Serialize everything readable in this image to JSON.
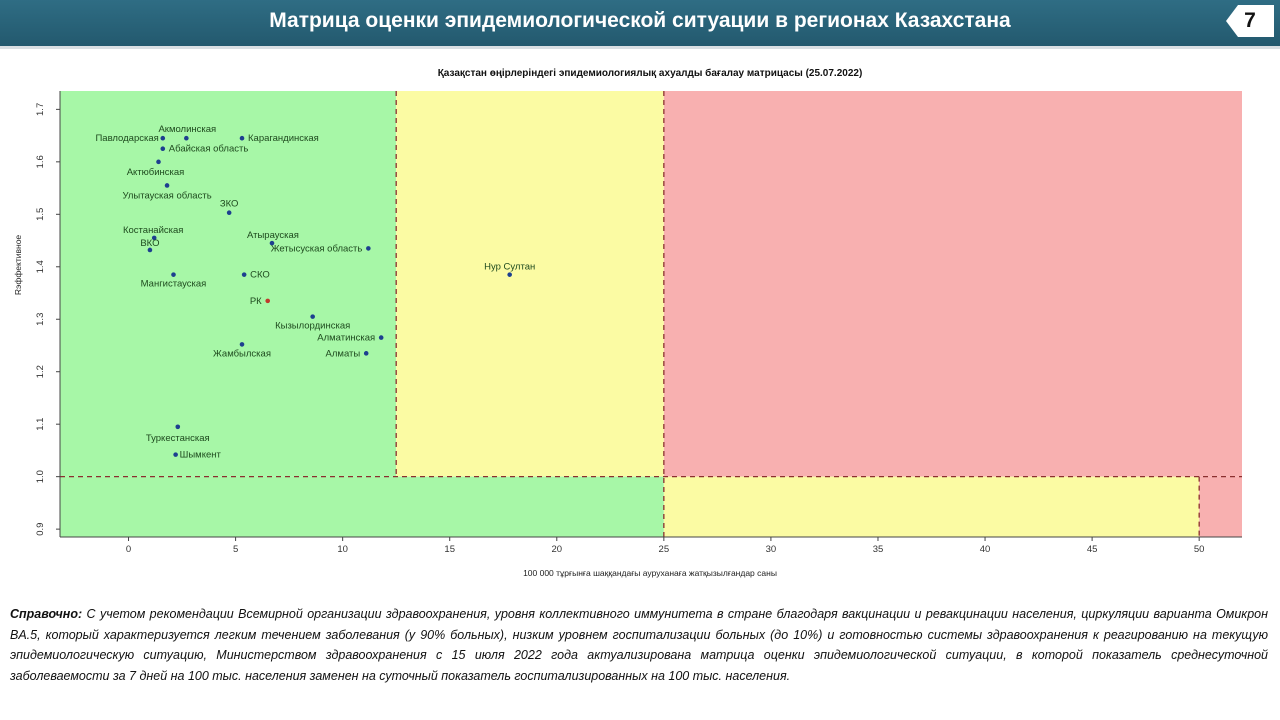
{
  "header": {
    "title": "Матрица оценки эпидемиологической ситуации в регионах Казахстана",
    "page_number": "7"
  },
  "colors": {
    "green": "#a7f7a7",
    "yellow": "#fbfba3",
    "red": "#f8b0b0",
    "point": "#1d3f8f",
    "highlight": "#c0392b",
    "threshold": "#8b2f2f"
  },
  "chart_data": {
    "type": "scatter",
    "title": "Қазақстан өңірлеріндегі эпидемиологиялық ахуалды бағалау матрицасы  (25.07.2022)",
    "xlabel": "100 000 тұрғынға шаққандағы ауруханаға жатқызылғандар саны",
    "ylabel": "Rэффективное",
    "xlim": [
      -3.2,
      52
    ],
    "ylim": [
      0.885,
      1.735
    ],
    "xticks": [
      0,
      5,
      10,
      15,
      20,
      25,
      30,
      35,
      40,
      45,
      50
    ],
    "yticks": [
      0.9,
      1.0,
      1.1,
      1.2,
      1.3,
      1.4,
      1.5,
      1.6,
      1.7
    ],
    "ytick_labels": [
      "0.9",
      "1.0",
      "1.1",
      "1.2",
      "1.3",
      "1.4",
      "1.5",
      "1.6",
      "1.7"
    ],
    "zones": [
      {
        "x0": -3.2,
        "x1": 12.5,
        "y0": 1.0,
        "y1": 1.735,
        "color": "green"
      },
      {
        "x0": 12.5,
        "x1": 25,
        "y0": 1.0,
        "y1": 1.735,
        "color": "yellow"
      },
      {
        "x0": 25,
        "x1": 52,
        "y0": 1.0,
        "y1": 1.735,
        "color": "red"
      },
      {
        "x0": -3.2,
        "x1": 25,
        "y0": 0.885,
        "y1": 1.0,
        "color": "green"
      },
      {
        "x0": 25,
        "x1": 50,
        "y0": 0.885,
        "y1": 1.0,
        "color": "yellow"
      },
      {
        "x0": 50,
        "x1": 52,
        "y0": 0.885,
        "y1": 1.0,
        "color": "red"
      }
    ],
    "thresholds": {
      "x": [
        12.5,
        25,
        50
      ],
      "y": [
        1.0
      ]
    },
    "points": [
      {
        "label": "Акмолинская",
        "x": 2.7,
        "y": 1.645,
        "highlight": false
      },
      {
        "label": "Павлодарская",
        "x": 1.6,
        "y": 1.645,
        "highlight": false
      },
      {
        "label": "Карагандинская",
        "x": 5.3,
        "y": 1.645,
        "highlight": false
      },
      {
        "label": "Абайская область",
        "x": 1.6,
        "y": 1.625,
        "highlight": false
      },
      {
        "label": "Актюбинская",
        "x": 1.4,
        "y": 1.6,
        "highlight": false
      },
      {
        "label": "Улытауская область",
        "x": 1.8,
        "y": 1.555,
        "highlight": false
      },
      {
        "label": "ЗКО",
        "x": 4.7,
        "y": 1.503,
        "highlight": false
      },
      {
        "label": "Костанайская",
        "x": 1.2,
        "y": 1.455,
        "highlight": false
      },
      {
        "label": "ВКО",
        "x": 1.0,
        "y": 1.432,
        "highlight": false
      },
      {
        "label": "Атырауская",
        "x": 6.7,
        "y": 1.445,
        "highlight": false
      },
      {
        "label": "Жетысуская область",
        "x": 11.2,
        "y": 1.435,
        "highlight": false
      },
      {
        "label": "Нур Султан",
        "x": 17.8,
        "y": 1.385,
        "highlight": false
      },
      {
        "label": "Мангистауская",
        "x": 2.1,
        "y": 1.385,
        "highlight": false
      },
      {
        "label": "СКО",
        "x": 5.4,
        "y": 1.385,
        "highlight": false
      },
      {
        "label": "РК",
        "x": 6.5,
        "y": 1.335,
        "highlight": true
      },
      {
        "label": "Кызылординская",
        "x": 8.6,
        "y": 1.305,
        "highlight": false
      },
      {
        "label": "Алматинская",
        "x": 11.8,
        "y": 1.265,
        "highlight": false
      },
      {
        "label": "Жамбылская",
        "x": 5.3,
        "y": 1.252,
        "highlight": false
      },
      {
        "label": "Алматы",
        "x": 11.1,
        "y": 1.235,
        "highlight": false
      },
      {
        "label": "Туркестанская",
        "x": 2.3,
        "y": 1.095,
        "highlight": false
      },
      {
        "label": "Шымкент",
        "x": 2.2,
        "y": 1.042,
        "highlight": false
      }
    ]
  },
  "note": {
    "lead": "Справочно:",
    "text": " С учетом рекомендации Всемирной организации здравоохранения, уровня коллективного иммунитета в стране благодаря вакцинации и ревакцинации населения, циркуляции варианта Омикрон BA.5, который характеризуется легким течением заболевания (у 90% больных), низким уровнем госпитализации больных (до 10%) и готовностью системы здравоохранения к реагированию на текущую эпидемиологическую ситуацию, Министерством здравоохранения с 15 июля 2022 года актуализирована матрица оценки эпидемиологической ситуации, в которой показатель  среднесуточной заболеваемости за 7 дней на 100 тыс. населения заменен на  суточный показатель госпитализированных на 100 тыс. населения."
  }
}
